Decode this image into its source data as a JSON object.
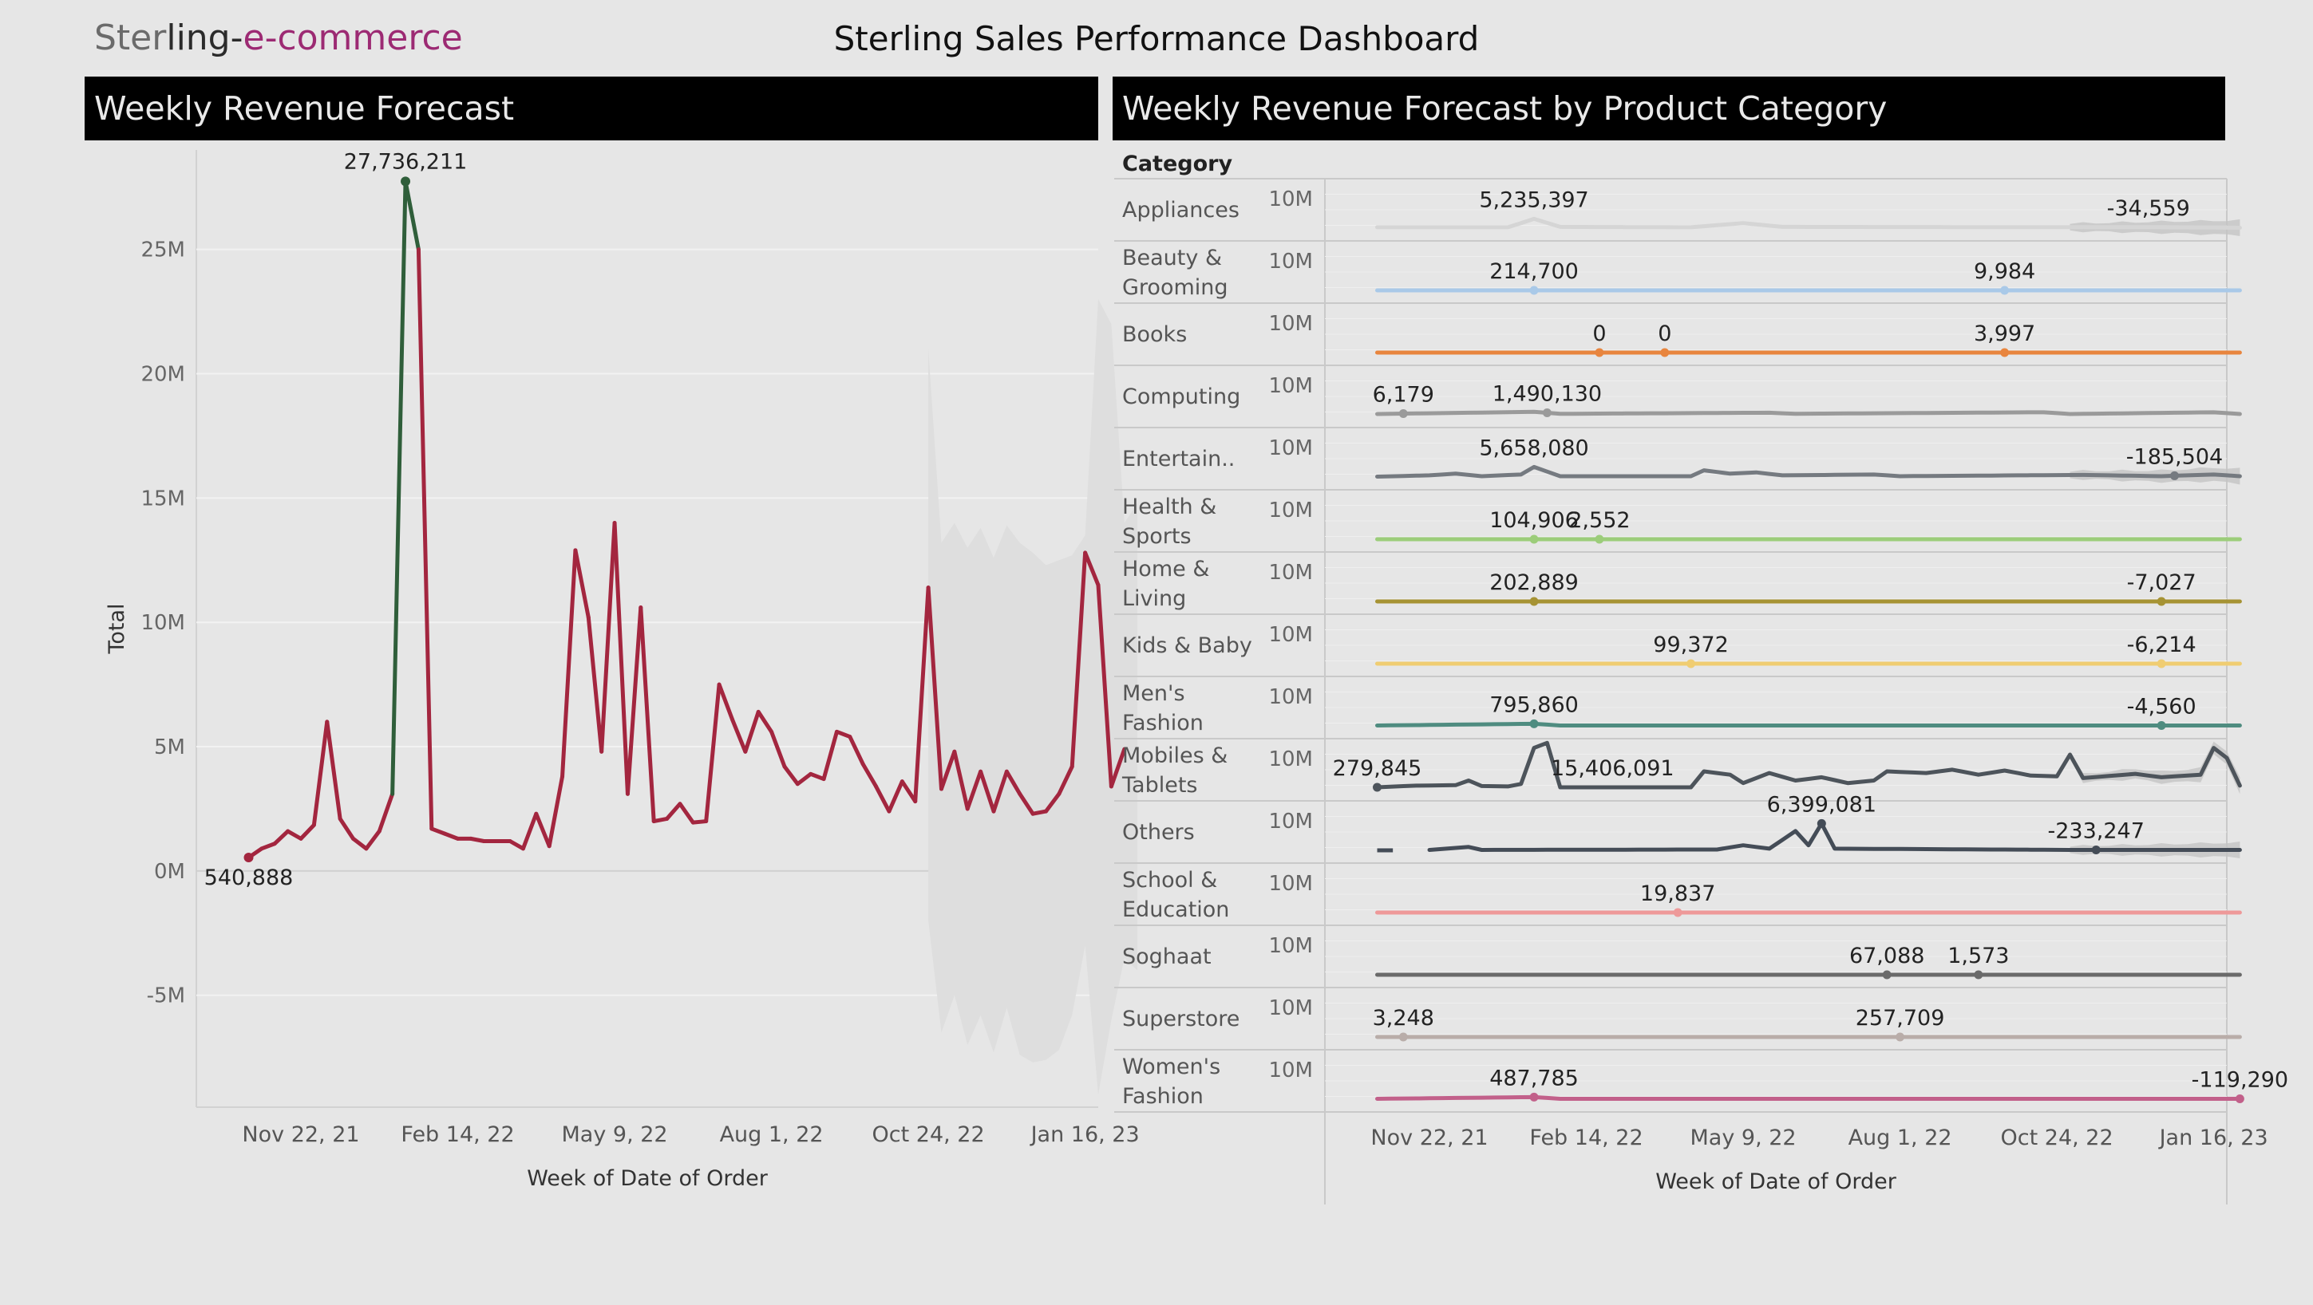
{
  "header": {
    "logo": {
      "part1": "Ster",
      "part2": "ling-",
      "part3": "e-commerce"
    },
    "title": "Sterling Sales Performance Dashboard"
  },
  "colors": {
    "background": "#e6e6e6",
    "header_bg": "#000000",
    "main_line": "#a3263f",
    "peak_line": "#2f5e3a",
    "forecast_band": "#dedede"
  },
  "left_panel": {
    "title": "Weekly Revenue Forecast",
    "xlabel": "Week of Date of Order",
    "ylabel": "Total"
  },
  "right_panel": {
    "title": "Weekly Revenue Forecast by Product Category",
    "column_header": "Category",
    "xlabel": "Week of Date of Order"
  },
  "chart_data": [
    {
      "type": "line",
      "title": "Weekly Revenue Forecast",
      "xlabel": "Week of Date of Order",
      "ylabel": "Total",
      "x_tick_labels": [
        "Nov 22, 21",
        "Feb 14, 22",
        "May 9, 22",
        "Aug 1, 22",
        "Oct 24, 22",
        "Jan 16, 23"
      ],
      "y_tick_labels": [
        "-5M",
        "0M",
        "5M",
        "10M",
        "15M",
        "20M",
        "25M"
      ],
      "y_ticks": [
        -5000000,
        0,
        5000000,
        10000000,
        15000000,
        20000000,
        25000000
      ],
      "ylim": [
        -9500000,
        29000000
      ],
      "x_index_range": [
        -4,
        65
      ],
      "x_tick_index": [
        4,
        16,
        28,
        40,
        52,
        64
      ],
      "grid": true,
      "series": [
        {
          "values": [
            540888,
            900000,
            1100000,
            1600000,
            1300000,
            1850000,
            6000000,
            2100000,
            1300000,
            900000,
            1600000,
            3100000,
            27736211,
            25000000,
            1700000,
            1500000,
            1300000,
            1300000,
            1200000,
            1200000,
            1200000,
            900000,
            2300000,
            1000000,
            3800000,
            12900000,
            10200000,
            4800000,
            14000000,
            3100000,
            10600000,
            2000000,
            2100000,
            2700000,
            1950000,
            2000000,
            7500000,
            6100000,
            4800000,
            6400000,
            5600000,
            4200000,
            3500000,
            3900000,
            3700000,
            5600000,
            5400000,
            4300000,
            3400000,
            2400000,
            3600000,
            2800000,
            11400000,
            3300000,
            4800000,
            2500000,
            4000000,
            2400000,
            4000000,
            3100000,
            2300000,
            2400000,
            3100000,
            4200000,
            12800000,
            11500000,
            3400000,
            4900000
          ]
        }
      ],
      "forecast_start_index": 52,
      "forecast_band_upper": [
        21000000,
        13200000,
        14000000,
        13000000,
        13800000,
        12600000,
        13900000,
        13200000,
        12800000,
        12300000,
        12500000,
        12700000,
        13500000,
        23000000,
        22000000,
        14000000,
        14800000
      ],
      "forecast_band_lower": [
        -2000000,
        -6500000,
        -5000000,
        -7000000,
        -5800000,
        -7300000,
        -5500000,
        -7400000,
        -7700000,
        -7600000,
        -7200000,
        -5800000,
        -3000000,
        -9000000,
        -6000000,
        -3500000,
        -4000000
      ],
      "annotations": [
        {
          "label": "27,736,211",
          "index": 12,
          "value": 27736211,
          "pos": "above"
        },
        {
          "label": "540,888",
          "index": 0,
          "value": 540888,
          "pos": "below"
        }
      ]
    },
    {
      "type": "line",
      "title": "Weekly Revenue Forecast by Product Category",
      "xlabel": "Week of Date of Order",
      "x_tick_labels": [
        "Nov 22, 21",
        "Feb 14, 22",
        "May 9, 22",
        "Aug 1, 22",
        "Oct 24, 22",
        "Jan 16, 23"
      ],
      "x_index_range": [
        -4,
        65
      ],
      "x_tick_index": [
        4,
        16,
        28,
        40,
        52,
        64
      ],
      "row_y_tick_label": "10M",
      "rows": [
        {
          "category": [
            "Appliances"
          ],
          "color": "#d5d5d5",
          "band": true,
          "profile": [
            [
              0,
              0.1
            ],
            [
              10,
              0.1
            ],
            [
              12,
              1.1
            ],
            [
              14,
              0.15
            ],
            [
              24,
              0.1
            ],
            [
              28,
              0.6
            ],
            [
              31,
              0.15
            ],
            [
              60,
              0.1
            ],
            [
              66,
              0.05
            ]
          ],
          "labels": [
            {
              "text": "5,235,397",
              "index": 12
            },
            {
              "text": "-34,559",
              "index": 59
            }
          ]
        },
        {
          "category": [
            "Beauty &",
            "Grooming"
          ],
          "color": "#a9c9e8",
          "labels": [
            {
              "text": "214,700",
              "index": 12,
              "dot": true
            },
            {
              "text": "9,984",
              "index": 48,
              "dot": true
            }
          ]
        },
        {
          "category": [
            "Books"
          ],
          "color": "#e8853e",
          "labels": [
            {
              "text": "0",
              "index": 17,
              "dot": true
            },
            {
              "text": "0",
              "index": 22,
              "dot": true
            },
            {
              "text": "3,997",
              "index": 48,
              "dot": true
            }
          ]
        },
        {
          "category": [
            "Computing"
          ],
          "color": "#9a9a9a",
          "profile": [
            [
              0,
              0.1
            ],
            [
              12,
              0.35
            ],
            [
              14,
              0.12
            ],
            [
              30,
              0.25
            ],
            [
              32,
              0.12
            ],
            [
              51,
              0.3
            ],
            [
              53,
              0.1
            ],
            [
              64,
              0.3
            ],
            [
              66,
              0.1
            ]
          ],
          "labels": [
            {
              "text": "6,179",
              "index": 2,
              "dot": true
            },
            {
              "text": "1,490,130",
              "index": 13,
              "dot": true
            }
          ]
        },
        {
          "category": [
            "Entertain.."
          ],
          "color": "#757a80",
          "band": true,
          "profile": [
            [
              0,
              0.05
            ],
            [
              4,
              0.2
            ],
            [
              6,
              0.4
            ],
            [
              8,
              0.1
            ],
            [
              11,
              0.3
            ],
            [
              12,
              1.2
            ],
            [
              14,
              0.1
            ],
            [
              24,
              0.1
            ],
            [
              25,
              0.8
            ],
            [
              27,
              0.4
            ],
            [
              29,
              0.55
            ],
            [
              31,
              0.2
            ],
            [
              38,
              0.3
            ],
            [
              40,
              0.1
            ],
            [
              54,
              0.25
            ],
            [
              60,
              0.1
            ],
            [
              64,
              0.3
            ],
            [
              66,
              0.1
            ]
          ],
          "labels": [
            {
              "text": "5,658,080",
              "index": 12
            },
            {
              "text": "-185,504",
              "index": 61,
              "dot": true
            }
          ]
        },
        {
          "category": [
            "Health &",
            "Sports"
          ],
          "color": "#9ccd7a",
          "labels": [
            {
              "text": "104,906",
              "index": 12,
              "dot": true
            },
            {
              "text": "2,552",
              "index": 17,
              "dot": true
            }
          ]
        },
        {
          "category": [
            "Home &",
            "Living"
          ],
          "color": "#a69334",
          "labels": [
            {
              "text": "202,889",
              "index": 12,
              "dot": true
            },
            {
              "text": "-7,027",
              "index": 60,
              "dot": true
            }
          ]
        },
        {
          "category": [
            "Kids & Baby"
          ],
          "color": "#f0cd72",
          "labels": [
            {
              "text": "99,372",
              "index": 24,
              "dot": true
            },
            {
              "text": "-6,214",
              "index": 60,
              "dot": true
            }
          ]
        },
        {
          "category": [
            "Men's",
            "Fashion"
          ],
          "color": "#4f8c80",
          "profile": [
            [
              0,
              0.05
            ],
            [
              12,
              0.25
            ],
            [
              14,
              0.05
            ],
            [
              66,
              0.05
            ]
          ],
          "labels": [
            {
              "text": "795,860",
              "index": 12,
              "dot": true
            },
            {
              "text": "-4,560",
              "index": 60,
              "dot": true
            }
          ]
        },
        {
          "category": [
            "Mobiles &",
            "Tablets"
          ],
          "color": "#4d545b",
          "band": true,
          "profile": [
            [
              0,
              0.1
            ],
            [
              3,
              0.3
            ],
            [
              6,
              0.35
            ],
            [
              7,
              0.9
            ],
            [
              8,
              0.25
            ],
            [
              10,
              0.2
            ],
            [
              11,
              0.5
            ],
            [
              12,
              4.8
            ],
            [
              13,
              5.4
            ],
            [
              14,
              0.1
            ],
            [
              24,
              0.1
            ],
            [
              25,
              2.0
            ],
            [
              27,
              1.6
            ],
            [
              28,
              0.6
            ],
            [
              30,
              1.8
            ],
            [
              32,
              0.9
            ],
            [
              34,
              1.3
            ],
            [
              36,
              0.6
            ],
            [
              38,
              0.9
            ],
            [
              39,
              2.0
            ],
            [
              42,
              1.8
            ],
            [
              44,
              2.2
            ],
            [
              46,
              1.6
            ],
            [
              48,
              2.1
            ],
            [
              50,
              1.5
            ],
            [
              52,
              1.4
            ],
            [
              53,
              4.0
            ],
            [
              54,
              1.2
            ],
            [
              58,
              1.7
            ],
            [
              60,
              1.3
            ],
            [
              63,
              1.6
            ],
            [
              64,
              4.8
            ],
            [
              65,
              3.6
            ],
            [
              66,
              0.3
            ]
          ],
          "labels": [
            {
              "text": "279,845",
              "index": 0,
              "dot": true
            },
            {
              "text": "15,406,091",
              "index": 18
            }
          ]
        },
        {
          "category": [
            "Others"
          ],
          "color": "#444c57",
          "band": true,
          "start_index": 4,
          "profile": [
            [
              4,
              0.05
            ],
            [
              7,
              0.4
            ],
            [
              8,
              0.05
            ],
            [
              26,
              0.1
            ],
            [
              28,
              0.6
            ],
            [
              30,
              0.2
            ],
            [
              32,
              2.3
            ],
            [
              33,
              0.6
            ],
            [
              34,
              3.2
            ],
            [
              35,
              0.2
            ],
            [
              53,
              0.05
            ],
            [
              66,
              0.05
            ]
          ],
          "labels": [
            {
              "text": "6,399,081",
              "index": 34,
              "dot": true
            },
            {
              "text": "-233,247",
              "index": 55,
              "dot": true
            }
          ]
        },
        {
          "category": [
            "School &",
            "Education"
          ],
          "color": "#ee9999",
          "labels": [
            {
              "text": "19,837",
              "index": 23,
              "dot": true
            }
          ]
        },
        {
          "category": [
            "Soghaat"
          ],
          "color": "#6a6a6a",
          "labels": [
            {
              "text": "67,088",
              "index": 39,
              "dot": true
            },
            {
              "text": "1,573",
              "index": 46,
              "dot": true
            }
          ]
        },
        {
          "category": [
            "Superstore"
          ],
          "color": "#b9ada9",
          "labels": [
            {
              "text": "3,248",
              "index": 2,
              "dot": true
            },
            {
              "text": "257,709",
              "index": 40,
              "dot": true
            }
          ]
        },
        {
          "category": [
            "Women's",
            "Fashion"
          ],
          "color": "#c2608a",
          "profile": [
            [
              0,
              0.05
            ],
            [
              12,
              0.25
            ],
            [
              14,
              0.05
            ],
            [
              66,
              0.05
            ]
          ],
          "labels": [
            {
              "text": "487,785",
              "index": 12,
              "dot": true
            },
            {
              "text": "-119,290",
              "index": 66,
              "dot": true
            }
          ]
        }
      ]
    }
  ]
}
